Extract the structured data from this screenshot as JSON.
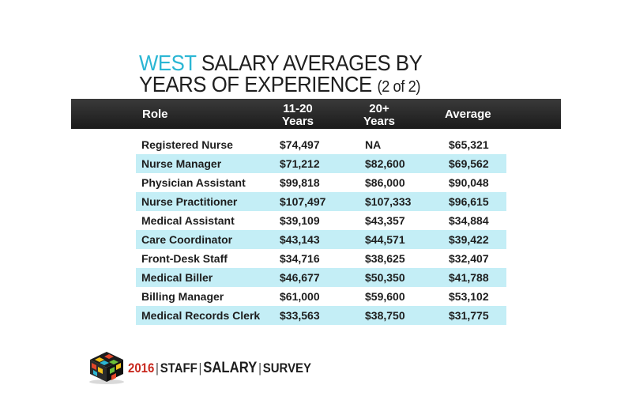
{
  "title": {
    "accent": "WEST",
    "line1_rest": " SALARY AVERAGES BY",
    "line2": "YEARS OF EXPERIENCE",
    "part": "(2 of 2)"
  },
  "colors": {
    "accent": "#2bb6d4",
    "header_bg": "#262626",
    "row_alt": "#c4eef6",
    "year": "#c8281e"
  },
  "chart_data": {
    "type": "table",
    "columns": [
      "Role",
      "11-20 Years",
      "20+ Years",
      "Average"
    ],
    "rows": [
      {
        "role": "Registered Nurse",
        "y11_20": "$74,497",
        "y20_plus": "NA",
        "average": "$65,321"
      },
      {
        "role": "Nurse Manager",
        "y11_20": "$71,212",
        "y20_plus": "$82,600",
        "average": "$69,562"
      },
      {
        "role": "Physician Assistant",
        "y11_20": "$99,818",
        "y20_plus": "$86,000",
        "average": "$90,048"
      },
      {
        "role": "Nurse Practitioner",
        "y11_20": "$107,497",
        "y20_plus": "$107,333",
        "average": "$96,615"
      },
      {
        "role": "Medical Assistant",
        "y11_20": "$39,109",
        "y20_plus": "$43,357",
        "average": "$34,884"
      },
      {
        "role": "Care Coordinator",
        "y11_20": "$43,143",
        "y20_plus": "$44,571",
        "average": "$39,422"
      },
      {
        "role": "Front-Desk Staff",
        "y11_20": "$34,716",
        "y20_plus": "$38,625",
        "average": "$32,407"
      },
      {
        "role": "Medical Biller",
        "y11_20": "$46,677",
        "y20_plus": "$50,350",
        "average": "$41,788"
      },
      {
        "role": "Billing Manager",
        "y11_20": "$61,000",
        "y20_plus": "$59,600",
        "average": "$53,102"
      },
      {
        "role": "Medical Records Clerk",
        "y11_20": "$33,563",
        "y20_plus": "$38,750",
        "average": "$31,775"
      }
    ]
  },
  "header": {
    "role": "Role",
    "col1_line1": "11-20",
    "col1_line2": "Years",
    "col2_line1": "20+",
    "col2_line2": "Years",
    "average": "Average"
  },
  "footer": {
    "year": "2016",
    "w1": "STAFF",
    "w2": "SALARY",
    "w3": "SURVEY",
    "logo_icon": "cube-logo-icon"
  }
}
